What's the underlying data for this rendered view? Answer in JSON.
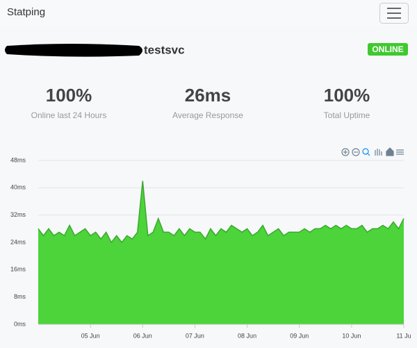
{
  "nav": {
    "brand": "Statping"
  },
  "service": {
    "name": "testsvc",
    "status": "ONLINE"
  },
  "stats": [
    {
      "value": "100%",
      "label": "Online last 24 Hours"
    },
    {
      "value": "26ms",
      "label": "Average Response"
    },
    {
      "value": "100%",
      "label": "Total Uptime"
    }
  ],
  "chart_data": {
    "type": "area",
    "color": "#4cd43a",
    "line_color": "#3aa82e",
    "grid": true,
    "xlim": [
      4,
      11
    ],
    "xticks": [
      {
        "value": 5,
        "label": "05 Jun"
      },
      {
        "value": 6,
        "label": "06 Jun"
      },
      {
        "value": 7,
        "label": "07 Jun"
      },
      {
        "value": 8,
        "label": "08 Jun"
      },
      {
        "value": 9,
        "label": "09 Jun"
      },
      {
        "value": 10,
        "label": "10 Jun"
      },
      {
        "value": 11,
        "label": "11 Ju"
      }
    ],
    "ylim": [
      0,
      48
    ],
    "yticks": [
      {
        "value": 0,
        "label": "0ms"
      },
      {
        "value": 8,
        "label": "8ms"
      },
      {
        "value": 16,
        "label": "16ms"
      },
      {
        "value": 24,
        "label": "24ms"
      },
      {
        "value": 32,
        "label": "32ms"
      },
      {
        "value": 40,
        "label": "40ms"
      },
      {
        "value": 48,
        "label": "48ms"
      }
    ],
    "x": [
      4.0,
      4.1,
      4.2,
      4.3,
      4.4,
      4.5,
      4.6,
      4.7,
      4.8,
      4.9,
      5.0,
      5.1,
      5.2,
      5.3,
      5.4,
      5.5,
      5.6,
      5.7,
      5.8,
      5.9,
      6.0,
      6.1,
      6.2,
      6.3,
      6.4,
      6.5,
      6.6,
      6.7,
      6.8,
      6.9,
      7.0,
      7.1,
      7.2,
      7.3,
      7.4,
      7.5,
      7.6,
      7.7,
      7.8,
      7.9,
      8.0,
      8.1,
      8.2,
      8.3,
      8.4,
      8.5,
      8.6,
      8.7,
      8.8,
      8.9,
      9.0,
      9.1,
      9.2,
      9.3,
      9.4,
      9.5,
      9.6,
      9.7,
      9.8,
      9.9,
      10.0,
      10.1,
      10.2,
      10.3,
      10.4,
      10.5,
      10.6,
      10.7,
      10.8,
      10.9,
      11.0
    ],
    "values": [
      28,
      26,
      28,
      26,
      27,
      26,
      29,
      26,
      27,
      28,
      26,
      27,
      25,
      27,
      24,
      26,
      24,
      26,
      25,
      27,
      42,
      26,
      27,
      31,
      27,
      27,
      26,
      28,
      26,
      28,
      27,
      27,
      25,
      28,
      26,
      28,
      27,
      29,
      28,
      27,
      28,
      26,
      27,
      29,
      26,
      27,
      28,
      26,
      27,
      27,
      27,
      28,
      27,
      28,
      28,
      29,
      28,
      29,
      28,
      29,
      28,
      28,
      29,
      27,
      28,
      28,
      29,
      28,
      30,
      28,
      31
    ]
  }
}
